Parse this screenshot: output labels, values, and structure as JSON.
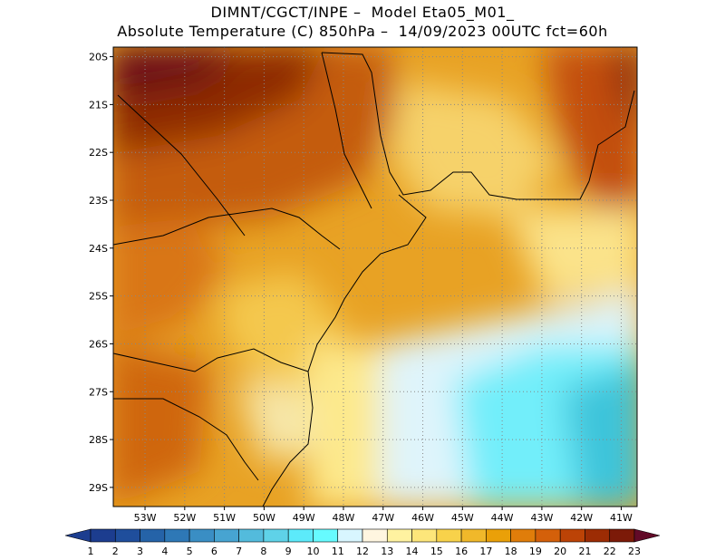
{
  "title_line1": "DIMNT/CGCT/INPE –  Model Eta05_M01_",
  "title_line2": "Absolute Temperature (C) 850hPa –  14/09/2023 00UTC fct=60h",
  "map": {
    "lon_range": [
      -53.8,
      -40.6
    ],
    "lat_range": [
      -29.4,
      -19.8
    ],
    "lon_ticks": [
      "53W",
      "52W",
      "51W",
      "50W",
      "49W",
      "48W",
      "47W",
      "46W",
      "45W",
      "44W",
      "43W",
      "42W",
      "41W"
    ],
    "lat_ticks": [
      "20S",
      "21S",
      "22S",
      "23S",
      "24S",
      "25S",
      "26S",
      "27S",
      "28S",
      "29S"
    ]
  },
  "colorbar": {
    "labels": [
      "1",
      "2",
      "3",
      "4",
      "5",
      "6",
      "7",
      "8",
      "9",
      "10",
      "11",
      "12",
      "13",
      "14",
      "15",
      "16",
      "17",
      "18",
      "19",
      "20",
      "21",
      "22",
      "23"
    ],
    "colors": [
      "#1c3d8f",
      "#1f4e9c",
      "#2563a8",
      "#2e78b6",
      "#3a8ec4",
      "#47a4d1",
      "#53bbdc",
      "#5fd2e8",
      "#5ceafa",
      "#66fbff",
      "#d8f6ff",
      "#fff6e0",
      "#fff2a0",
      "#fde67a",
      "#f8d24a",
      "#f0b82a",
      "#eaa008",
      "#e07d0a",
      "#d4600a",
      "#bc4306",
      "#9c2c04",
      "#7c1a08",
      "#620a28"
    ]
  }
}
